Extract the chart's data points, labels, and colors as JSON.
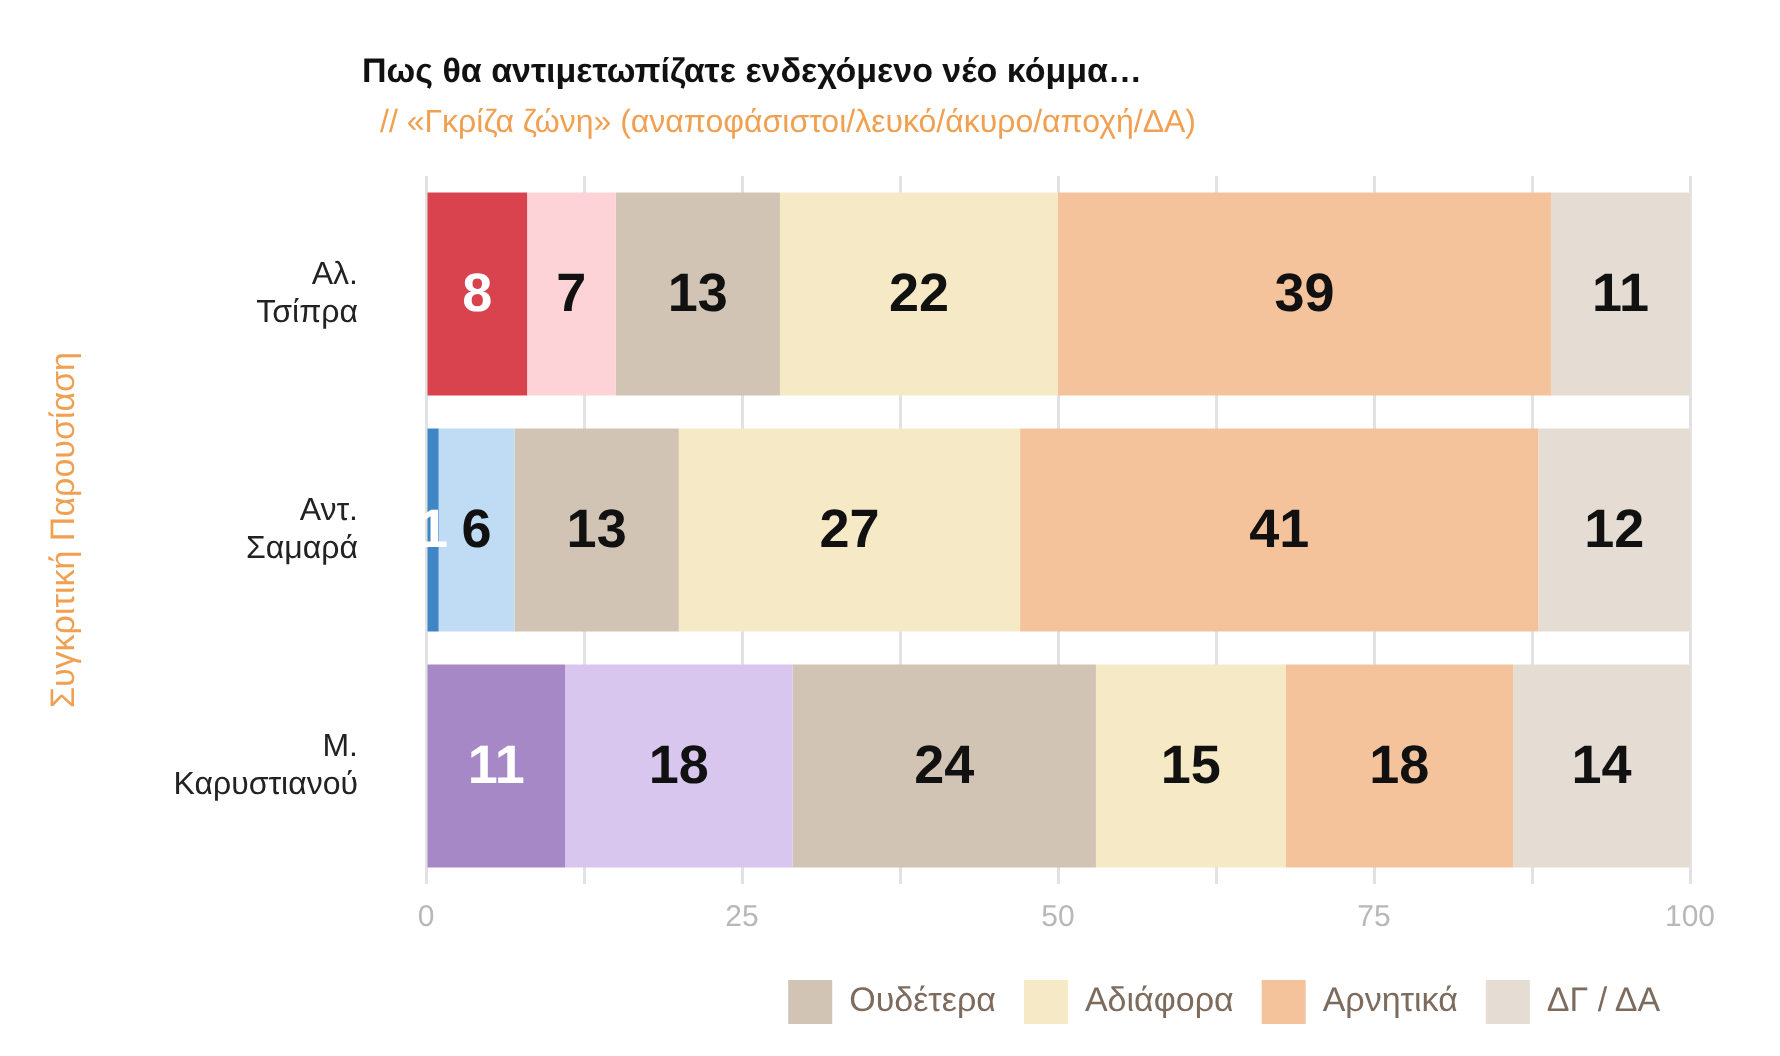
{
  "chart_data": {
    "type": "bar",
    "orientation": "horizontal",
    "stacked": true,
    "title": "Πως θα αντιμετωπίζατε ενδεχόμενο νέο κόμμα…",
    "subtitle": "// «Γκρίζα ζώνη» (αναποφάσιστοι/λευκό/άκυρο/αποχή/ΔΑ)",
    "ylabel": "Συγκριτική Παρουσίαση",
    "categories": [
      "Αλ. Τσίπρα",
      "Αντ. Σαμαρά",
      "Μ. Καρυστιανού"
    ],
    "series": [
      {
        "colors": [
          "#d9434e",
          "#3f86c6",
          "#a688c6"
        ],
        "values": [
          8,
          1,
          11
        ]
      },
      {
        "colors": [
          "#fdd3d8",
          "#bfdcf4",
          "#d8c6ee"
        ],
        "values": [
          7,
          6,
          18
        ]
      },
      {
        "name": "Ουδέτερα",
        "color": "#d2c4b5",
        "values": [
          13,
          13,
          24
        ]
      },
      {
        "name": "Αδιάφορα",
        "color": "#f6eac6",
        "values": [
          22,
          27,
          15
        ]
      },
      {
        "name": "Αρνητικά",
        "color": "#f5c39b",
        "values": [
          39,
          41,
          18
        ]
      },
      {
        "name": "ΔΓ / ΔΑ",
        "color": "#e5ddd3",
        "values": [
          11,
          12,
          14
        ]
      }
    ],
    "xlim": [
      0,
      100
    ],
    "xticks": [
      0,
      {
        "value": 12.5,
        "label": null
      },
      25,
      {
        "value": 37.5,
        "label": null
      },
      50,
      {
        "value": 62.5,
        "label": null
      },
      75,
      {
        "value": 87.5,
        "label": null
      },
      100
    ],
    "grid": "x",
    "legend": "bottom right",
    "data_labels": true
  }
}
